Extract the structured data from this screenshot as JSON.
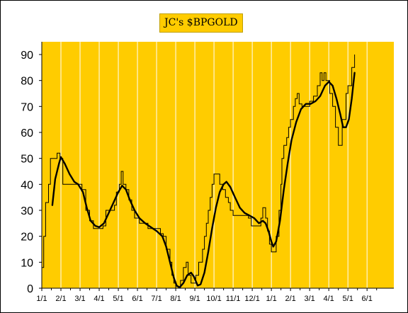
{
  "chart_data": {
    "type": "line",
    "title": "JC's $BPGOLD",
    "xlabel": "",
    "ylabel": "",
    "ylim": [
      0,
      90
    ],
    "yticks": [
      0,
      10,
      20,
      30,
      40,
      50,
      60,
      70,
      80,
      90
    ],
    "grid": "vertical",
    "legend": "none",
    "x_tick_labels": [
      "1/1",
      "2/1",
      "3/1",
      "4/1",
      "5/1",
      "6/1",
      "7/1",
      "8/1",
      "9/1",
      "10/1",
      "11/1",
      "12/1",
      "1/1",
      "2/1",
      "3/1",
      "4/1",
      "5/1",
      "6/1"
    ],
    "x_range_months": [
      0,
      18.4
    ],
    "colors": {
      "plot_background": "#ffcc00",
      "title_background": "#ffcc00",
      "series": "#000000",
      "grid": "#ffffff"
    },
    "series": [
      {
        "style": "thin-step",
        "points": [
          [
            0.0,
            8
          ],
          [
            0.1,
            20
          ],
          [
            0.2,
            33
          ],
          [
            0.35,
            40
          ],
          [
            0.45,
            50
          ],
          [
            0.65,
            50
          ],
          [
            0.8,
            52
          ],
          [
            0.95,
            50
          ],
          [
            1.1,
            40
          ],
          [
            1.4,
            40
          ],
          [
            1.8,
            40
          ],
          [
            2.1,
            38
          ],
          [
            2.3,
            30
          ],
          [
            2.5,
            26
          ],
          [
            2.7,
            23
          ],
          [
            3.0,
            23
          ],
          [
            3.2,
            24
          ],
          [
            3.35,
            30
          ],
          [
            3.6,
            30
          ],
          [
            3.8,
            32
          ],
          [
            3.9,
            37
          ],
          [
            4.05,
            40
          ],
          [
            4.15,
            45
          ],
          [
            4.25,
            40
          ],
          [
            4.4,
            38
          ],
          [
            4.55,
            34
          ],
          [
            4.7,
            30
          ],
          [
            4.85,
            27
          ],
          [
            5.1,
            25
          ],
          [
            5.35,
            25
          ],
          [
            5.55,
            23
          ],
          [
            5.8,
            23
          ],
          [
            6.0,
            23
          ],
          [
            6.2,
            21
          ],
          [
            6.35,
            20
          ],
          [
            6.5,
            15
          ],
          [
            6.7,
            10
          ],
          [
            6.8,
            5
          ],
          [
            6.9,
            2
          ],
          [
            7.0,
            0
          ],
          [
            7.15,
            0
          ],
          [
            7.25,
            3
          ],
          [
            7.4,
            8
          ],
          [
            7.55,
            10
          ],
          [
            7.65,
            5
          ],
          [
            7.8,
            2
          ],
          [
            7.95,
            2
          ],
          [
            8.05,
            5
          ],
          [
            8.2,
            10
          ],
          [
            8.4,
            15
          ],
          [
            8.5,
            20
          ],
          [
            8.6,
            25
          ],
          [
            8.7,
            30
          ],
          [
            8.8,
            35
          ],
          [
            8.9,
            40
          ],
          [
            9.0,
            44
          ],
          [
            9.2,
            44
          ],
          [
            9.3,
            40
          ],
          [
            9.45,
            38
          ],
          [
            9.6,
            35
          ],
          [
            9.75,
            33
          ],
          [
            9.85,
            30
          ],
          [
            10.0,
            28
          ],
          [
            10.3,
            28
          ],
          [
            10.55,
            28
          ],
          [
            10.8,
            27
          ],
          [
            10.95,
            24
          ],
          [
            11.25,
            24
          ],
          [
            11.45,
            27
          ],
          [
            11.55,
            31
          ],
          [
            11.7,
            27
          ],
          [
            11.8,
            22
          ],
          [
            11.9,
            17
          ],
          [
            12.0,
            14
          ],
          [
            12.15,
            14
          ],
          [
            12.25,
            20
          ],
          [
            12.4,
            30
          ],
          [
            12.5,
            40
          ],
          [
            12.55,
            50
          ],
          [
            12.65,
            55
          ],
          [
            12.8,
            58
          ],
          [
            12.9,
            62
          ],
          [
            13.0,
            65
          ],
          [
            13.15,
            70
          ],
          [
            13.25,
            73
          ],
          [
            13.35,
            75
          ],
          [
            13.45,
            71
          ],
          [
            13.6,
            70
          ],
          [
            14.0,
            72
          ],
          [
            14.2,
            74
          ],
          [
            14.4,
            78
          ],
          [
            14.55,
            83
          ],
          [
            14.65,
            80
          ],
          [
            14.75,
            83
          ],
          [
            14.85,
            80
          ],
          [
            15.05,
            75
          ],
          [
            15.2,
            70
          ],
          [
            15.35,
            62
          ],
          [
            15.5,
            55
          ],
          [
            15.7,
            65
          ],
          [
            15.9,
            75
          ],
          [
            16.0,
            78
          ],
          [
            16.2,
            85
          ],
          [
            16.35,
            90
          ]
        ]
      },
      {
        "style": "thick-smooth",
        "points": [
          [
            0.55,
            32
          ],
          [
            0.7,
            42
          ],
          [
            0.9,
            48
          ],
          [
            1.0,
            50.5
          ],
          [
            1.2,
            48
          ],
          [
            1.45,
            44
          ],
          [
            1.7,
            41
          ],
          [
            1.9,
            40
          ],
          [
            2.15,
            37
          ],
          [
            2.35,
            31
          ],
          [
            2.55,
            26
          ],
          [
            2.8,
            24
          ],
          [
            3.0,
            23.5
          ],
          [
            3.25,
            25
          ],
          [
            3.5,
            29
          ],
          [
            3.75,
            33
          ],
          [
            4.0,
            37
          ],
          [
            4.2,
            39.5
          ],
          [
            4.4,
            38
          ],
          [
            4.6,
            34
          ],
          [
            4.85,
            30
          ],
          [
            5.1,
            27
          ],
          [
            5.4,
            25
          ],
          [
            5.7,
            23.5
          ],
          [
            6.0,
            22
          ],
          [
            6.3,
            20
          ],
          [
            6.5,
            16
          ],
          [
            6.7,
            10
          ],
          [
            6.9,
            4
          ],
          [
            7.05,
            1
          ],
          [
            7.2,
            0.3
          ],
          [
            7.4,
            2
          ],
          [
            7.6,
            5
          ],
          [
            7.8,
            6
          ],
          [
            7.95,
            4.5
          ],
          [
            8.15,
            1
          ],
          [
            8.3,
            1.5
          ],
          [
            8.5,
            6
          ],
          [
            8.7,
            14
          ],
          [
            8.9,
            23
          ],
          [
            9.1,
            31
          ],
          [
            9.3,
            37
          ],
          [
            9.5,
            40
          ],
          [
            9.65,
            41
          ],
          [
            9.85,
            39
          ],
          [
            10.1,
            35
          ],
          [
            10.35,
            31
          ],
          [
            10.6,
            29
          ],
          [
            10.85,
            28
          ],
          [
            11.1,
            27
          ],
          [
            11.35,
            25
          ],
          [
            11.55,
            26
          ],
          [
            11.7,
            25
          ],
          [
            11.85,
            22
          ],
          [
            12.0,
            18
          ],
          [
            12.1,
            16
          ],
          [
            12.25,
            18
          ],
          [
            12.45,
            26
          ],
          [
            12.65,
            38
          ],
          [
            12.85,
            48
          ],
          [
            13.05,
            57
          ],
          [
            13.3,
            64
          ],
          [
            13.55,
            69
          ],
          [
            13.8,
            71
          ],
          [
            14.05,
            71
          ],
          [
            14.3,
            72
          ],
          [
            14.55,
            74
          ],
          [
            14.8,
            78
          ],
          [
            15.0,
            79.5
          ],
          [
            15.2,
            78
          ],
          [
            15.4,
            73
          ],
          [
            15.6,
            67
          ],
          [
            15.75,
            62
          ],
          [
            15.9,
            62
          ],
          [
            16.05,
            65
          ],
          [
            16.2,
            73
          ],
          [
            16.35,
            83
          ]
        ]
      }
    ]
  }
}
